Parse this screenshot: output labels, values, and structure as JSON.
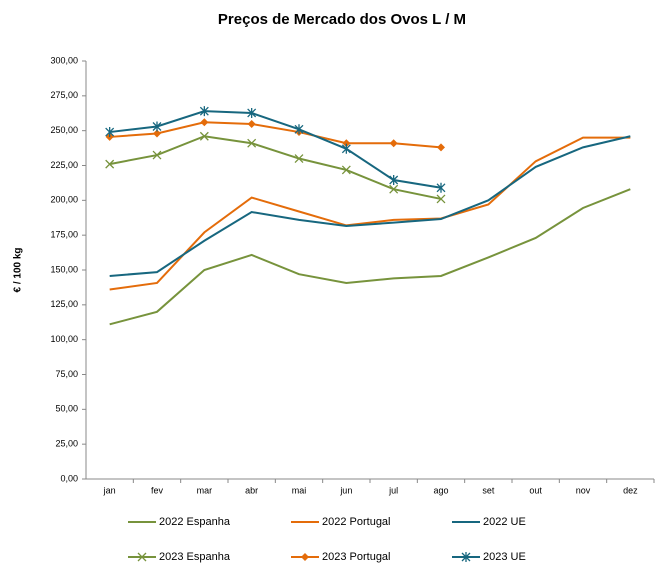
{
  "chart_data": {
    "type": "line",
    "title": "Preços de Mercado dos Ovos L / M",
    "y_label": "€ / 100 kg",
    "categories": [
      "jan",
      "fev",
      "mar",
      "abr",
      "mai",
      "jun",
      "jul",
      "ago",
      "set",
      "out",
      "nov",
      "dez"
    ],
    "ylim": [
      0,
      300
    ],
    "yticks": [
      {
        "value": 0,
        "label": "0,00"
      },
      {
        "value": 25,
        "label": "25,00"
      },
      {
        "value": 50,
        "label": "50,00"
      },
      {
        "value": 75,
        "label": "75,00"
      },
      {
        "value": 100,
        "label": "100,00"
      },
      {
        "value": 125,
        "label": "125,00"
      },
      {
        "value": 150,
        "label": "150,00"
      },
      {
        "value": 175,
        "label": "175,00"
      },
      {
        "value": 200,
        "label": "200,00"
      },
      {
        "value": 225,
        "label": "225,00"
      },
      {
        "value": 250,
        "label": "250,00"
      },
      {
        "value": 275,
        "label": "275,00"
      },
      {
        "value": 300,
        "label": "300,00"
      }
    ],
    "grid": false,
    "legend": "bottom",
    "series": [
      {
        "name": "2022 Espanha",
        "color": "#77933c",
        "marker": "none",
        "values": [
          111,
          120,
          150,
          160.8,
          147,
          140.7,
          144,
          145.7,
          159,
          173,
          194.5,
          208
        ]
      },
      {
        "name": "2022 Portugal",
        "color": "#e46c0a",
        "marker": "none",
        "values": [
          136,
          140.7,
          177,
          202,
          192,
          182,
          186,
          187,
          197,
          228,
          245,
          245
        ]
      },
      {
        "name": "2022 UE",
        "color": "#17677f",
        "marker": "none",
        "values": [
          145.7,
          148.5,
          171,
          191.6,
          186,
          181.6,
          184,
          186.6,
          200,
          224,
          238,
          246
        ]
      },
      {
        "name": "2023 Espanha",
        "color": "#77933c",
        "marker": "x",
        "values": [
          226,
          232.5,
          246,
          241,
          230,
          221.8,
          208,
          201,
          null,
          null,
          null,
          null
        ]
      },
      {
        "name": "2023 Portugal",
        "color": "#e46c0a",
        "marker": "diamond",
        "values": [
          245.5,
          248,
          256,
          254.8,
          249,
          241,
          241,
          238,
          null,
          null,
          null,
          null
        ]
      },
      {
        "name": "2023 UE",
        "color": "#17677f",
        "marker": "star",
        "values": [
          249,
          253,
          264,
          262.7,
          251,
          237,
          214.6,
          209,
          null,
          null,
          null,
          null
        ]
      }
    ]
  }
}
